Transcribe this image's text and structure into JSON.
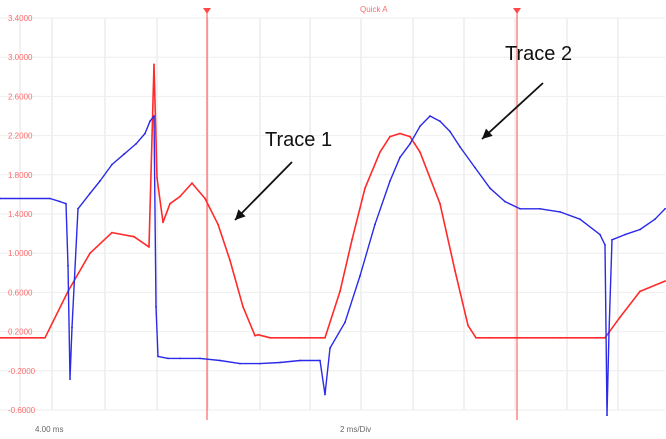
{
  "chart_data": {
    "type": "line",
    "title": "",
    "top_label": "Quick A",
    "xlabel": "",
    "ylabel": "",
    "grid": true,
    "xlim": [
      0,
      665
    ],
    "ylim": [
      -0.4,
      3.4
    ],
    "y_ticks": [
      "3.4000",
      "3.0000",
      "2.6000",
      "2.2000",
      "1.8000",
      "1.4000",
      "1.0000",
      "0.6000",
      "0.2000",
      "-0.2000",
      "-0.6000"
    ],
    "bottom_labels": [
      "4.00 ms",
      "2 ms/Div"
    ],
    "annotations": [
      "Trace 1",
      "Trace 2"
    ],
    "series": [
      {
        "color": "#ff2a2a",
        "x": [
          0,
          45,
          68,
          90,
          112,
          134,
          149,
          154,
          157,
          163,
          170,
          180,
          192,
          205,
          218,
          230,
          243,
          255,
          258,
          270,
          300,
          325,
          340,
          352,
          365,
          380,
          390,
          400,
          410,
          420,
          440,
          455,
          468,
          476,
          490,
          520,
          560,
          605,
          620,
          640,
          665
        ],
        "y": [
          0.3,
          0.3,
          0.75,
          1.12,
          1.32,
          1.28,
          1.18,
          2.95,
          1.85,
          1.42,
          1.6,
          1.67,
          1.8,
          1.65,
          1.4,
          1.05,
          0.6,
          0.32,
          0.33,
          0.3,
          0.3,
          0.3,
          0.75,
          1.25,
          1.75,
          2.1,
          2.25,
          2.28,
          2.25,
          2.1,
          1.6,
          0.95,
          0.42,
          0.3,
          0.3,
          0.3,
          0.3,
          0.3,
          0.5,
          0.75,
          0.85
        ]
      },
      {
        "color": "#2a2ae8",
        "x": [
          0,
          50,
          60,
          66,
          68,
          70,
          72,
          78,
          90,
          100,
          112,
          124,
          136,
          145,
          150,
          154,
          156,
          158,
          168,
          180,
          200,
          220,
          240,
          260,
          280,
          300,
          320,
          325,
          330,
          345,
          360,
          375,
          390,
          400,
          410,
          420,
          430,
          440,
          450,
          460,
          475,
          490,
          505,
          520,
          540,
          560,
          580,
          600,
          605,
          607,
          609,
          612,
          625,
          640,
          655,
          665
        ],
        "y": [
          1.65,
          1.65,
          1.62,
          1.6,
          1.0,
          -0.1,
          0.4,
          1.55,
          1.7,
          1.82,
          1.98,
          2.08,
          2.18,
          2.28,
          2.4,
          2.45,
          0.6,
          0.12,
          0.1,
          0.1,
          0.1,
          0.08,
          0.05,
          0.05,
          0.06,
          0.08,
          0.08,
          -0.25,
          0.2,
          0.45,
          0.9,
          1.4,
          1.82,
          2.05,
          2.18,
          2.35,
          2.45,
          2.4,
          2.3,
          2.15,
          1.95,
          1.75,
          1.62,
          1.55,
          1.55,
          1.52,
          1.45,
          1.3,
          1.2,
          -0.45,
          0.35,
          1.25,
          1.3,
          1.35,
          1.45,
          1.55
        ]
      }
    ]
  }
}
